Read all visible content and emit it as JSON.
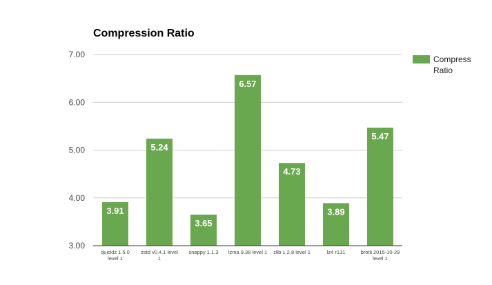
{
  "chart_data": {
    "type": "bar",
    "title": "Compression Ratio",
    "xlabel": "",
    "ylabel": "",
    "categories": [
      [
        "quicklz 1.5.0",
        "level 1"
      ],
      [
        "zstd v0.4.1 level",
        "1"
      ],
      [
        "snappy 1.1.3"
      ],
      [
        "lzma 9.38 level 1"
      ],
      [
        "zlib 1.2.8 level 1"
      ],
      [
        "lz4 r131"
      ],
      [
        "brotli 2015-10-29",
        "level 1"
      ]
    ],
    "series": [
      {
        "name": "Compress Ratio",
        "values": [
          3.91,
          5.24,
          3.65,
          6.57,
          4.73,
          3.89,
          5.47
        ],
        "data_labels": [
          "3.91",
          "5.24",
          "3.65",
          "6.57",
          "4.73",
          "3.89",
          "5.47"
        ],
        "color": "#6aa84f"
      }
    ],
    "ylim": [
      3.0,
      7.0
    ],
    "yticks": [
      3.0,
      4.0,
      5.0,
      6.0,
      7.0
    ],
    "ytick_labels": [
      "3.00",
      "4.00",
      "5.00",
      "6.00",
      "7.00"
    ],
    "grid": true,
    "legend_position": "right",
    "colors": {
      "bar": "#6aa84f",
      "gridline": "#cccccc",
      "axis_text": "#444444",
      "data_label": "#ffffff"
    }
  }
}
